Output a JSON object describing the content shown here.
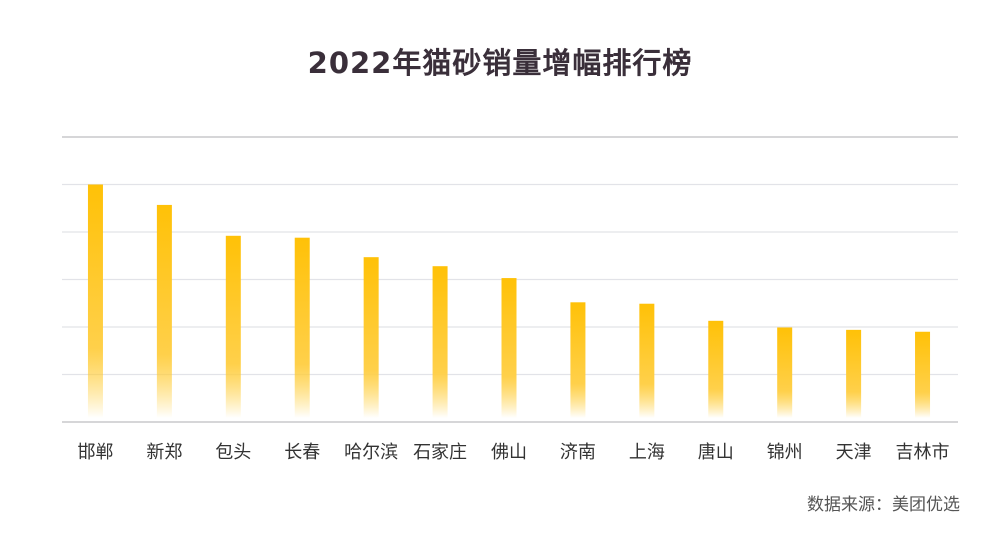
{
  "chart_data": {
    "type": "bar",
    "title": "2022年猫砂销量增幅排行榜",
    "categories": [
      "邯郸",
      "新郑",
      "包头",
      "长春",
      "哈尔滨",
      "石家庄",
      "佛山",
      "济南",
      "上海",
      "唐山",
      "锦州",
      "天津",
      "吉林市"
    ],
    "values": [
      5.0,
      4.57,
      3.92,
      3.88,
      3.47,
      3.28,
      3.03,
      2.52,
      2.49,
      2.13,
      1.99,
      1.94,
      1.9
    ],
    "xlabel": "",
    "ylabel": "",
    "ylim": [
      0,
      6
    ],
    "grid": true,
    "bar_color": "#FFC107",
    "source": "数据来源：美团优选"
  }
}
